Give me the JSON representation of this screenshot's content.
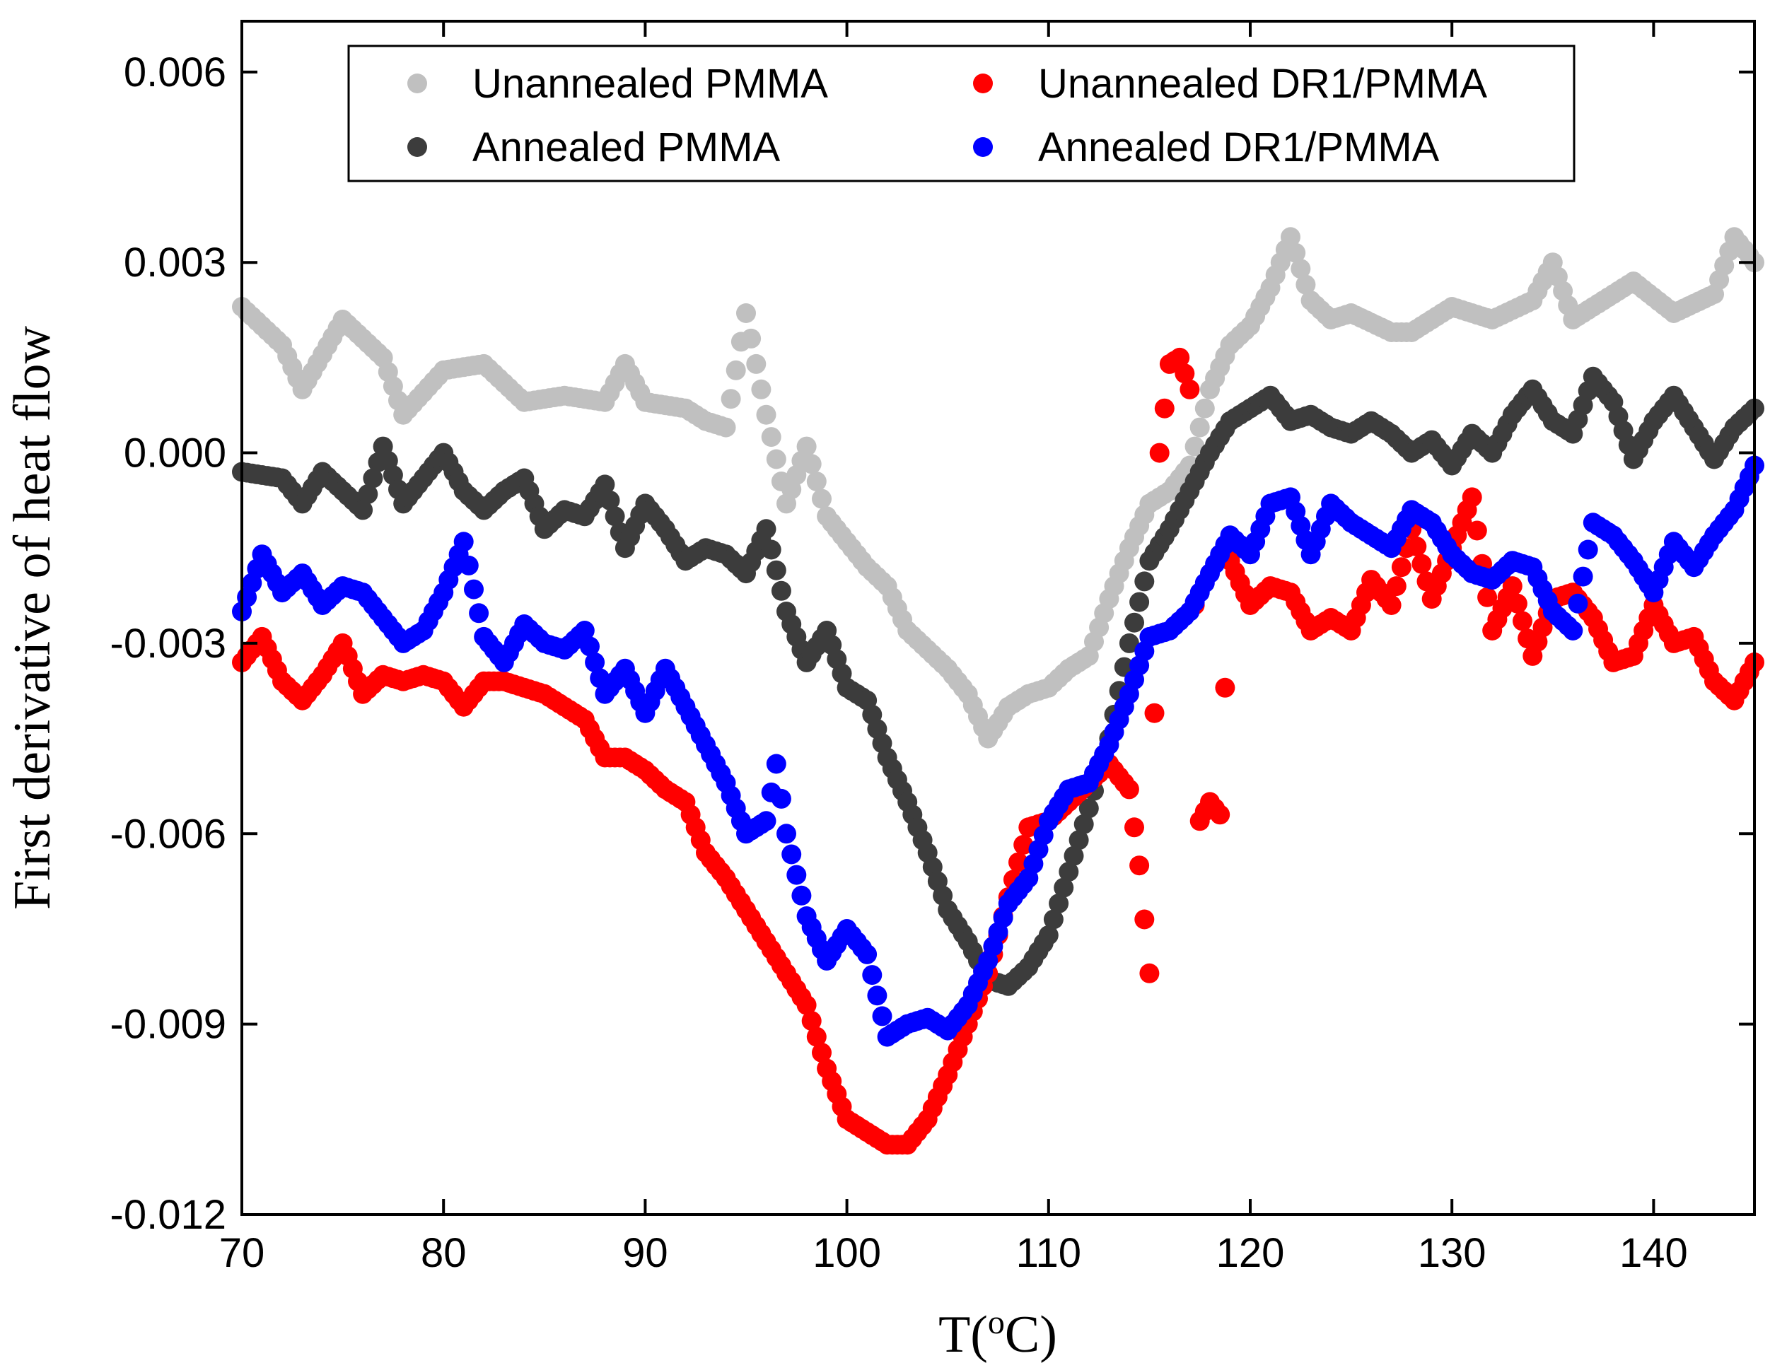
{
  "chart_data": {
    "type": "scatter",
    "xlabel": "T(",
    "xlabel_sup": "o",
    "xlabel_suffix": "C)",
    "ylabel": "First derivative of heat flow",
    "xlim": [
      70,
      145
    ],
    "ylim": [
      -0.012,
      0.0068
    ],
    "xticks": [
      70,
      80,
      90,
      100,
      110,
      120,
      130,
      140
    ],
    "xtick_labels": [
      "70",
      "80",
      "90",
      "100",
      "110",
      "120",
      "130",
      "140"
    ],
    "yticks": [
      0.006,
      0.003,
      0.0,
      -0.003,
      -0.006,
      -0.009,
      -0.012
    ],
    "ytick_labels": [
      "0.006",
      "0.003",
      "0.000",
      "-0.003",
      "-0.006",
      "-0.009",
      "-0.012"
    ],
    "grid": false,
    "legend_position": "top",
    "colors": {
      "Unannealed PMMA": "#c0c0c0",
      "Annealed PMMA": "#3c3c3c",
      "Unannealed DR1/PMMA": "#ff0000",
      "Annealed DR1/PMMA": "#0000ff"
    },
    "series": [
      {
        "name": "Unannealed PMMA",
        "keypoints": [
          [
            70,
            0.0023
          ],
          [
            72,
            0.0017
          ],
          [
            73,
            0.001
          ],
          [
            75,
            0.0021
          ],
          [
            77,
            0.0015
          ],
          [
            78,
            0.0006
          ],
          [
            80,
            0.0013
          ],
          [
            82,
            0.0014
          ],
          [
            84,
            0.0008
          ],
          [
            86,
            0.0009
          ],
          [
            88,
            0.0008
          ],
          [
            89,
            0.0014
          ],
          [
            90,
            0.0008
          ],
          [
            92,
            0.0007
          ],
          [
            93,
            0.0005
          ],
          [
            94,
            0.0004
          ],
          [
            95,
            0.0022
          ],
          [
            96,
            0.0006
          ],
          [
            97,
            -0.0008
          ],
          [
            98,
            0.0001
          ],
          [
            99,
            -0.001
          ],
          [
            100,
            -0.0014
          ],
          [
            101,
            -0.0018
          ],
          [
            102,
            -0.0021
          ],
          [
            103,
            -0.0028
          ],
          [
            104,
            -0.0031
          ],
          [
            105,
            -0.0034
          ],
          [
            106,
            -0.0038
          ],
          [
            107,
            -0.0045
          ],
          [
            108,
            -0.004
          ],
          [
            109,
            -0.0038
          ],
          [
            110,
            -0.0037
          ],
          [
            111,
            -0.0034
          ],
          [
            112,
            -0.0032
          ],
          [
            113,
            -0.0023
          ],
          [
            114,
            -0.0015
          ],
          [
            115,
            -0.0008
          ],
          [
            116,
            -0.0006
          ],
          [
            117,
            -0.0002
          ],
          [
            118,
            0.001
          ],
          [
            119,
            0.0017
          ],
          [
            120,
            0.002
          ],
          [
            121,
            0.0026
          ],
          [
            122,
            0.0034
          ],
          [
            123,
            0.0024
          ],
          [
            124,
            0.0021
          ],
          [
            125,
            0.0022
          ],
          [
            127,
            0.0019
          ],
          [
            128,
            0.0019
          ],
          [
            130,
            0.0023
          ],
          [
            132,
            0.0021
          ],
          [
            134,
            0.0024
          ],
          [
            135,
            0.003
          ],
          [
            136,
            0.0021
          ],
          [
            138,
            0.0025
          ],
          [
            139,
            0.0027
          ],
          [
            141,
            0.0022
          ],
          [
            143,
            0.0025
          ],
          [
            144,
            0.0034
          ],
          [
            145,
            0.003
          ]
        ]
      },
      {
        "name": "Annealed PMMA",
        "keypoints": [
          [
            70,
            -0.0003
          ],
          [
            72,
            -0.0004
          ],
          [
            73,
            -0.0008
          ],
          [
            74,
            -0.0003
          ],
          [
            75,
            -0.0006
          ],
          [
            76,
            -0.0009
          ],
          [
            77,
            0.0001
          ],
          [
            78,
            -0.0008
          ],
          [
            79,
            -0.0004
          ],
          [
            80,
            0.0
          ],
          [
            81,
            -0.0006
          ],
          [
            82,
            -0.0009
          ],
          [
            83,
            -0.0006
          ],
          [
            84,
            -0.0004
          ],
          [
            85,
            -0.0012
          ],
          [
            86,
            -0.0009
          ],
          [
            87,
            -0.001
          ],
          [
            88,
            -0.0005
          ],
          [
            89,
            -0.0015
          ],
          [
            90,
            -0.0008
          ],
          [
            91,
            -0.0012
          ],
          [
            92,
            -0.0017
          ],
          [
            93,
            -0.0015
          ],
          [
            94,
            -0.0016
          ],
          [
            95,
            -0.0019
          ],
          [
            96,
            -0.0012
          ],
          [
            97,
            -0.0025
          ],
          [
            98,
            -0.0033
          ],
          [
            99,
            -0.0028
          ],
          [
            100,
            -0.0037
          ],
          [
            101,
            -0.0039
          ],
          [
            102,
            -0.0048
          ],
          [
            103,
            -0.0055
          ],
          [
            104,
            -0.0063
          ],
          [
            105,
            -0.0072
          ],
          [
            106,
            -0.0077
          ],
          [
            107,
            -0.0083
          ],
          [
            108,
            -0.0084
          ],
          [
            109,
            -0.0081
          ],
          [
            110,
            -0.0076
          ],
          [
            111,
            -0.0066
          ],
          [
            112,
            -0.0056
          ],
          [
            113,
            -0.0045
          ],
          [
            114,
            -0.003
          ],
          [
            115,
            -0.0017
          ],
          [
            116,
            -0.0012
          ],
          [
            117,
            -0.0006
          ],
          [
            118,
            0.0
          ],
          [
            119,
            0.0005
          ],
          [
            120,
            0.0007
          ],
          [
            121,
            0.0009
          ],
          [
            122,
            0.0005
          ],
          [
            123,
            0.0006
          ],
          [
            124,
            0.0004
          ],
          [
            125,
            0.0003
          ],
          [
            126,
            0.0005
          ],
          [
            127,
            0.0003
          ],
          [
            128,
            0.0
          ],
          [
            129,
            0.0002
          ],
          [
            130,
            -0.0002
          ],
          [
            131,
            0.0003
          ],
          [
            132,
            0.0
          ],
          [
            133,
            0.0006
          ],
          [
            134,
            0.001
          ],
          [
            135,
            0.0005
          ],
          [
            136,
            0.0003
          ],
          [
            137,
            0.0012
          ],
          [
            138,
            0.0008
          ],
          [
            139,
            -0.0001
          ],
          [
            140,
            0.0005
          ],
          [
            141,
            0.0009
          ],
          [
            142,
            0.0004
          ],
          [
            143,
            -0.0001
          ],
          [
            144,
            0.0004
          ],
          [
            145,
            0.0007
          ]
        ]
      },
      {
        "name": "Unannealed DR1/PMMA",
        "keypoints": [
          [
            70,
            -0.0033
          ],
          [
            71,
            -0.0029
          ],
          [
            72,
            -0.0036
          ],
          [
            73,
            -0.0039
          ],
          [
            74,
            -0.0035
          ],
          [
            75,
            -0.003
          ],
          [
            76,
            -0.0038
          ],
          [
            77,
            -0.0035
          ],
          [
            78,
            -0.0036
          ],
          [
            79,
            -0.0035
          ],
          [
            80,
            -0.0036
          ],
          [
            81,
            -0.004
          ],
          [
            82,
            -0.0036
          ],
          [
            83,
            -0.0036
          ],
          [
            84,
            -0.0037
          ],
          [
            85,
            -0.0038
          ],
          [
            86,
            -0.004
          ],
          [
            87,
            -0.0042
          ],
          [
            88,
            -0.0048
          ],
          [
            89,
            -0.0048
          ],
          [
            90,
            -0.005
          ],
          [
            91,
            -0.0053
          ],
          [
            92,
            -0.0055
          ],
          [
            93,
            -0.0063
          ],
          [
            94,
            -0.0067
          ],
          [
            95,
            -0.0072
          ],
          [
            96,
            -0.0077
          ],
          [
            97,
            -0.0082
          ],
          [
            98,
            -0.0087
          ],
          [
            99,
            -0.0097
          ],
          [
            100,
            -0.0105
          ],
          [
            101,
            -0.0107
          ],
          [
            102,
            -0.0109
          ],
          [
            103,
            -0.0109
          ],
          [
            104,
            -0.0105
          ],
          [
            105,
            -0.0098
          ],
          [
            106,
            -0.009
          ],
          [
            107,
            -0.0082
          ],
          [
            108,
            -0.007
          ],
          [
            109,
            -0.0059
          ],
          [
            110,
            -0.0058
          ],
          [
            111,
            -0.0055
          ],
          [
            112,
            -0.0052
          ],
          [
            113,
            -0.0049
          ],
          [
            114,
            -0.0053
          ],
          [
            114.5,
            -0.0065
          ],
          [
            115,
            -0.0082
          ],
          [
            115.5,
            0.0
          ],
          [
            116,
            0.0014
          ],
          [
            116.5,
            0.0015
          ],
          [
            117,
            0.001
          ],
          [
            117.5,
            -0.0058
          ],
          [
            118,
            -0.0055
          ],
          [
            118.5,
            -0.0057
          ],
          [
            119,
            -0.0017
          ],
          [
            120,
            -0.0024
          ],
          [
            121,
            -0.0021
          ],
          [
            122,
            -0.0022
          ],
          [
            123,
            -0.0028
          ],
          [
            124,
            -0.0026
          ],
          [
            125,
            -0.0028
          ],
          [
            126,
            -0.002
          ],
          [
            127,
            -0.0024
          ],
          [
            128,
            -0.0012
          ],
          [
            129,
            -0.0023
          ],
          [
            130,
            -0.0015
          ],
          [
            131,
            -0.0007
          ],
          [
            132,
            -0.0028
          ],
          [
            133,
            -0.0021
          ],
          [
            134,
            -0.0032
          ],
          [
            135,
            -0.0023
          ],
          [
            136,
            -0.0022
          ],
          [
            137,
            -0.0026
          ],
          [
            138,
            -0.0033
          ],
          [
            139,
            -0.0032
          ],
          [
            140,
            -0.0024
          ],
          [
            141,
            -0.003
          ],
          [
            142,
            -0.0029
          ],
          [
            143,
            -0.0036
          ],
          [
            144,
            -0.0039
          ],
          [
            145,
            -0.0033
          ]
        ]
      },
      {
        "name": "Annealed DR1/PMMA",
        "keypoints": [
          [
            70,
            -0.0025
          ],
          [
            71,
            -0.0016
          ],
          [
            72,
            -0.0022
          ],
          [
            73,
            -0.0019
          ],
          [
            74,
            -0.0024
          ],
          [
            75,
            -0.0021
          ],
          [
            76,
            -0.0022
          ],
          [
            77,
            -0.0026
          ],
          [
            78,
            -0.003
          ],
          [
            79,
            -0.0028
          ],
          [
            80,
            -0.0022
          ],
          [
            81,
            -0.0014
          ],
          [
            82,
            -0.0029
          ],
          [
            83,
            -0.0033
          ],
          [
            84,
            -0.0027
          ],
          [
            85,
            -0.003
          ],
          [
            86,
            -0.0031
          ],
          [
            87,
            -0.0028
          ],
          [
            88,
            -0.0038
          ],
          [
            89,
            -0.0034
          ],
          [
            90,
            -0.0041
          ],
          [
            91,
            -0.0034
          ],
          [
            92,
            -0.004
          ],
          [
            93,
            -0.0046
          ],
          [
            94,
            -0.0052
          ],
          [
            95,
            -0.006
          ],
          [
            96,
            -0.0058
          ],
          [
            96.5,
            -0.0049
          ],
          [
            97,
            -0.006
          ],
          [
            98,
            -0.0073
          ],
          [
            99,
            -0.008
          ],
          [
            100,
            -0.0075
          ],
          [
            101,
            -0.0079
          ],
          [
            102,
            -0.0092
          ],
          [
            103,
            -0.009
          ],
          [
            104,
            -0.0089
          ],
          [
            105,
            -0.0091
          ],
          [
            106,
            -0.0087
          ],
          [
            107,
            -0.008
          ],
          [
            108,
            -0.0071
          ],
          [
            109,
            -0.0067
          ],
          [
            110,
            -0.0058
          ],
          [
            111,
            -0.0053
          ],
          [
            112,
            -0.0052
          ],
          [
            113,
            -0.0046
          ],
          [
            114,
            -0.0038
          ],
          [
            115,
            -0.0029
          ],
          [
            116,
            -0.0028
          ],
          [
            117,
            -0.0025
          ],
          [
            118,
            -0.0019
          ],
          [
            119,
            -0.0013
          ],
          [
            120,
            -0.0016
          ],
          [
            121,
            -0.0008
          ],
          [
            122,
            -0.0007
          ],
          [
            123,
            -0.0016
          ],
          [
            124,
            -0.0008
          ],
          [
            125,
            -0.0011
          ],
          [
            126,
            -0.0013
          ],
          [
            127,
            -0.0015
          ],
          [
            128,
            -0.0009
          ],
          [
            129,
            -0.0011
          ],
          [
            130,
            -0.0016
          ],
          [
            131,
            -0.0019
          ],
          [
            132,
            -0.002
          ],
          [
            133,
            -0.0017
          ],
          [
            134,
            -0.0018
          ],
          [
            135,
            -0.0025
          ],
          [
            136,
            -0.0028
          ],
          [
            137,
            -0.0011
          ],
          [
            138,
            -0.0013
          ],
          [
            139,
            -0.0017
          ],
          [
            140,
            -0.0022
          ],
          [
            141,
            -0.0014
          ],
          [
            142,
            -0.0018
          ],
          [
            143,
            -0.0013
          ],
          [
            144,
            -0.0009
          ],
          [
            145,
            -0.0002
          ]
        ]
      }
    ]
  }
}
